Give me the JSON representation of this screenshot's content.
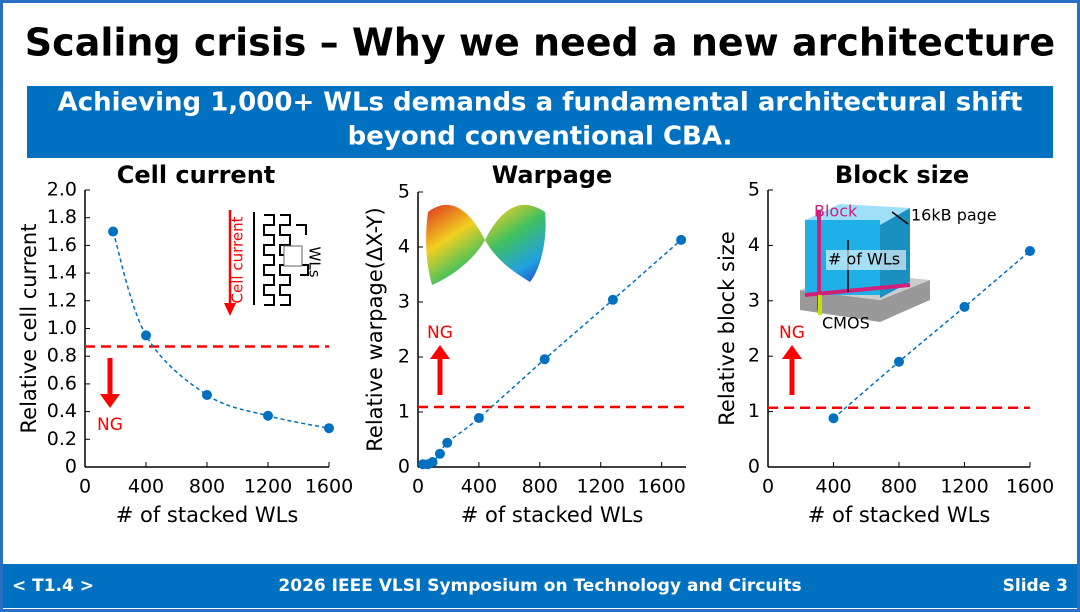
{
  "slide": {
    "title": "Scaling crisis – Why we need a new architecture",
    "subtitle": [
      "Achieving 1,000+ WLs demands a fundamental architectural shift",
      "beyond conventional CBA."
    ],
    "footer_left": "< T1.4 >",
    "footer_center": "2026 IEEE VLSI Symposium on Technology and Circuits",
    "footer_right": "Slide 3"
  },
  "chart_data": [
    {
      "type": "scatter",
      "title": "Cell current",
      "x_label": "# of stacked WLs",
      "y_label": "Relative cell current",
      "xlim": [
        0,
        1600
      ],
      "xticks": [
        0,
        400,
        800,
        1200,
        1600
      ],
      "ylim": [
        0,
        2
      ],
      "yticks": [
        0,
        0.2,
        0.4,
        0.6,
        0.8,
        {
          "value": 1,
          "label": "1.0"
        },
        1.2,
        1.4,
        1.6,
        1.8,
        {
          "value": 2,
          "label": "2.0"
        }
      ],
      "series": [
        {
          "color": "#0070c0",
          "x": [
            184,
            400,
            800,
            1200,
            1600
          ],
          "values": [
            1.7,
            0.95,
            0.52,
            0.37,
            0.28
          ]
        }
      ],
      "threshold": 0.87,
      "threshold_color": "#ff0000",
      "ng_label": "NG",
      "ng_direction": "down",
      "inset_labels": [
        "Cell current",
        "WLs"
      ]
    },
    {
      "type": "scatter",
      "title": "Warpage",
      "x_label": "# of stacked WLs",
      "y_label": "Relative warpage(ΔX-Y)",
      "xlim": [
        0,
        1760
      ],
      "xticks": [
        0,
        400,
        800,
        1200,
        1600
      ],
      "ylim": [
        0,
        5
      ],
      "yticks": [
        0,
        1,
        2,
        3,
        4,
        5
      ],
      "series": [
        {
          "color": "#0070c0",
          "x": [
            32,
            64,
            96,
            144,
            192,
            400,
            832,
            1280,
            1728
          ],
          "values": [
            0.05,
            0.05,
            0.09,
            0.24,
            0.44,
            0.89,
            1.96,
            3.04,
            4.13
          ]
        }
      ],
      "threshold": 1.09,
      "threshold_color": "#ff0000",
      "ng_label": "NG",
      "ng_direction": "up"
    },
    {
      "type": "scatter",
      "title": "Block size",
      "x_label": "# of stacked WLs",
      "y_label": "Relative block size",
      "xlim": [
        0,
        1600
      ],
      "xticks": [
        0,
        400,
        800,
        1200,
        1600
      ],
      "ylim": [
        0,
        5
      ],
      "yticks": [
        0,
        1,
        2,
        3,
        4,
        5
      ],
      "series": [
        {
          "color": "#0070c0",
          "x": [
            400,
            800,
            1200,
            1600
          ],
          "values": [
            0.88,
            1.9,
            2.89,
            3.9
          ]
        }
      ],
      "threshold": 1.07,
      "threshold_color": "#ff0000",
      "ng_label": "NG",
      "ng_direction": "up",
      "inset_labels": [
        "Block",
        "16kB page",
        "# of WLs",
        "CMOS"
      ]
    }
  ]
}
